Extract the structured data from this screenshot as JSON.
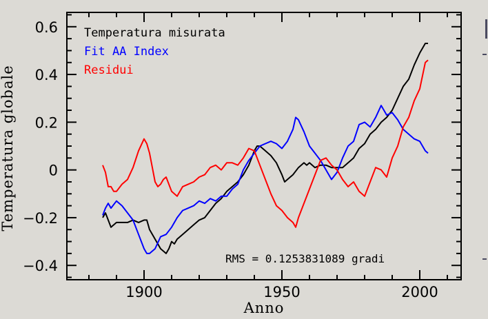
{
  "chart_data": {
    "type": "line",
    "title": "",
    "xlabel": "Anno",
    "ylabel": "Temperatura globale",
    "xlim": [
      1872,
      2015
    ],
    "ylim": [
      -0.46,
      0.66
    ],
    "xticks": [
      1900,
      1950,
      2000
    ],
    "yticks": [
      -0.4,
      -0.2,
      0,
      0.2,
      0.4,
      0.6
    ],
    "ytick_labels": [
      "−0.4",
      "−0.2",
      "0",
      "0.2",
      "0.4",
      "0.6"
    ],
    "grid": false,
    "legend_position": "top-left",
    "annotation": "RMS = 0.1253831089 gradi",
    "series": [
      {
        "name": "Temperatura misurata",
        "color": "#000000",
        "x": [
          1885,
          1886,
          1887,
          1888,
          1890,
          1892,
          1894,
          1896,
          1898,
          1900,
          1901,
          1902,
          1904,
          1906,
          1908,
          1909,
          1910,
          1911,
          1912,
          1914,
          1916,
          1918,
          1920,
          1922,
          1924,
          1926,
          1928,
          1930,
          1932,
          1934,
          1936,
          1938,
          1939,
          1940,
          1941,
          1942,
          1944,
          1946,
          1948,
          1950,
          1951,
          1952,
          1954,
          1956,
          1958,
          1959,
          1960,
          1962,
          1964,
          1966,
          1968,
          1970,
          1972,
          1974,
          1976,
          1978,
          1980,
          1982,
          1984,
          1986,
          1988,
          1990,
          1992,
          1994,
          1996,
          1998,
          2000,
          2002,
          2003
        ],
        "values": [
          -0.2,
          -0.18,
          -0.21,
          -0.24,
          -0.22,
          -0.22,
          -0.22,
          -0.21,
          -0.22,
          -0.21,
          -0.21,
          -0.25,
          -0.29,
          -0.33,
          -0.35,
          -0.33,
          -0.3,
          -0.31,
          -0.29,
          -0.27,
          -0.25,
          -0.23,
          -0.21,
          -0.2,
          -0.17,
          -0.14,
          -0.12,
          -0.09,
          -0.07,
          -0.05,
          -0.02,
          0.02,
          0.05,
          0.08,
          0.1,
          0.1,
          0.08,
          0.06,
          0.03,
          -0.02,
          -0.05,
          -0.04,
          -0.02,
          0.01,
          0.03,
          0.02,
          0.03,
          0.01,
          0.02,
          0.02,
          0.01,
          0.01,
          0.01,
          0.03,
          0.05,
          0.09,
          0.11,
          0.15,
          0.17,
          0.2,
          0.22,
          0.25,
          0.3,
          0.35,
          0.38,
          0.44,
          0.49,
          0.53,
          0.53
        ]
      },
      {
        "name": "Fit AA Index",
        "color": "#0000ff",
        "x": [
          1885,
          1886,
          1887,
          1888,
          1890,
          1892,
          1894,
          1896,
          1898,
          1900,
          1901,
          1902,
          1904,
          1906,
          1908,
          1910,
          1912,
          1914,
          1916,
          1918,
          1920,
          1922,
          1924,
          1926,
          1928,
          1930,
          1932,
          1934,
          1936,
          1938,
          1940,
          1942,
          1944,
          1946,
          1948,
          1950,
          1952,
          1954,
          1955,
          1956,
          1958,
          1960,
          1962,
          1964,
          1966,
          1968,
          1970,
          1972,
          1974,
          1976,
          1978,
          1980,
          1982,
          1984,
          1986,
          1987,
          1988,
          1990,
          1992,
          1994,
          1996,
          1998,
          2000,
          2002,
          2003
        ],
        "values": [
          -0.19,
          -0.16,
          -0.14,
          -0.16,
          -0.13,
          -0.15,
          -0.18,
          -0.21,
          -0.27,
          -0.33,
          -0.35,
          -0.35,
          -0.33,
          -0.28,
          -0.27,
          -0.24,
          -0.2,
          -0.17,
          -0.16,
          -0.15,
          -0.13,
          -0.14,
          -0.12,
          -0.13,
          -0.11,
          -0.11,
          -0.08,
          -0.06,
          0.0,
          0.04,
          0.07,
          0.1,
          0.11,
          0.12,
          0.11,
          0.09,
          0.12,
          0.17,
          0.22,
          0.21,
          0.16,
          0.1,
          0.07,
          0.04,
          0.0,
          -0.04,
          -0.01,
          0.05,
          0.1,
          0.12,
          0.19,
          0.2,
          0.18,
          0.22,
          0.27,
          0.25,
          0.23,
          0.24,
          0.21,
          0.17,
          0.15,
          0.13,
          0.12,
          0.08,
          0.07
        ]
      },
      {
        "name": "Residui",
        "color": "#ff0000",
        "x": [
          1885,
          1886,
          1887,
          1888,
          1889,
          1890,
          1892,
          1894,
          1896,
          1898,
          1900,
          1901,
          1902,
          1903,
          1904,
          1905,
          1906,
          1907,
          1908,
          1910,
          1912,
          1914,
          1916,
          1918,
          1920,
          1922,
          1924,
          1926,
          1928,
          1930,
          1932,
          1934,
          1936,
          1938,
          1940,
          1942,
          1944,
          1946,
          1948,
          1950,
          1952,
          1954,
          1955,
          1956,
          1958,
          1960,
          1962,
          1964,
          1966,
          1968,
          1970,
          1972,
          1974,
          1976,
          1978,
          1980,
          1982,
          1984,
          1986,
          1988,
          1990,
          1992,
          1994,
          1996,
          1998,
          2000,
          2002,
          2003
        ],
        "values": [
          0.02,
          -0.01,
          -0.07,
          -0.07,
          -0.09,
          -0.09,
          -0.06,
          -0.04,
          0.01,
          0.08,
          0.13,
          0.11,
          0.07,
          0.01,
          -0.05,
          -0.07,
          -0.06,
          -0.04,
          -0.03,
          -0.09,
          -0.11,
          -0.07,
          -0.06,
          -0.05,
          -0.03,
          -0.02,
          0.01,
          0.02,
          0.0,
          0.03,
          0.03,
          0.02,
          0.05,
          0.09,
          0.08,
          0.02,
          -0.04,
          -0.1,
          -0.15,
          -0.17,
          -0.2,
          -0.22,
          -0.24,
          -0.2,
          -0.14,
          -0.08,
          -0.02,
          0.04,
          0.05,
          0.02,
          0.0,
          -0.04,
          -0.07,
          -0.05,
          -0.09,
          -0.11,
          -0.05,
          0.01,
          0.0,
          -0.03,
          0.05,
          0.1,
          0.18,
          0.22,
          0.29,
          0.34,
          0.45,
          0.46
        ]
      }
    ]
  },
  "edge_marks_color": "#4a4a60"
}
